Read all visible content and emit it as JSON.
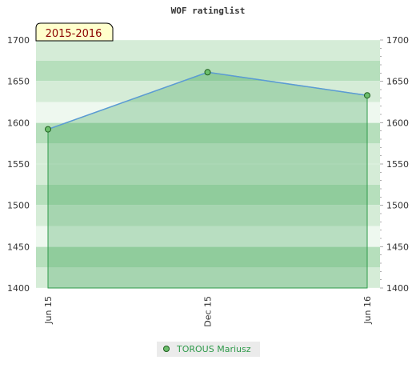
{
  "chart_data": {
    "type": "line",
    "title": "WOF ratinglist",
    "period_badge": "2015-2016",
    "categories": [
      "Jun 15",
      "Dec 15",
      "Jun 16"
    ],
    "series": [
      {
        "name": "TOROUS Mariusz",
        "values": [
          1592,
          1661,
          1633
        ]
      }
    ],
    "ylim": [
      1400,
      1700
    ],
    "yticks": [
      "1400",
      "1450",
      "1500",
      "1550",
      "1600",
      "1650",
      "1700"
    ],
    "ytick_values": [
      1400,
      1450,
      1500,
      1550,
      1600,
      1650,
      1700
    ],
    "ylabel": "",
    "xlabel": "",
    "grid": true,
    "legend_position": "bottom-center",
    "colors": {
      "line": "#5b9bd5",
      "area": "#2e9a4a",
      "marker": "#6cbf6c",
      "marker_stroke": "#1e5e1e",
      "band_light": "#e8f5e9",
      "band_mid": "#c7e6ca",
      "band_dark": "#9ed4a6",
      "badge_bg": "#ffffcc",
      "badge_text": "#8b0000",
      "legend_text": "#2e9a4a"
    }
  }
}
